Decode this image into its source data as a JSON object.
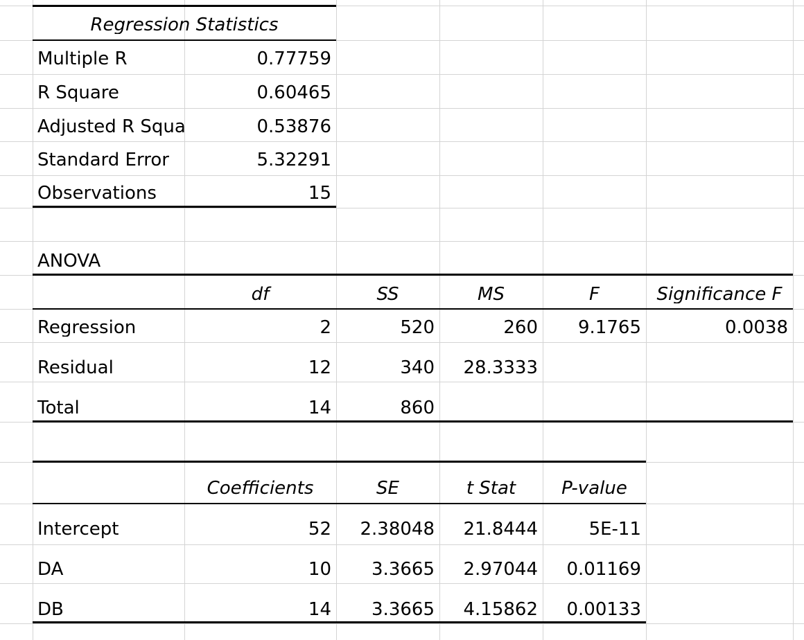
{
  "regression_statistics": {
    "title": "Regression Statistics",
    "rows": [
      {
        "label": "Multiple R",
        "value": "0.77759"
      },
      {
        "label": "R Square",
        "value": "0.60465"
      },
      {
        "label": "Adjusted R Squa",
        "value": "0.53876"
      },
      {
        "label": "Standard Error",
        "value": "5.32291"
      },
      {
        "label": "Observations",
        "value": "15"
      }
    ]
  },
  "anova": {
    "title": "ANOVA",
    "headers": [
      "",
      "df",
      "SS",
      "MS",
      "F",
      "Significance F"
    ],
    "rows": [
      [
        "Regression",
        "2",
        "520",
        "260",
        "9.1765",
        "0.0038"
      ],
      [
        "Residual",
        "12",
        "340",
        "28.3333",
        "",
        ""
      ],
      [
        "Total",
        "14",
        "860",
        "",
        "",
        ""
      ]
    ]
  },
  "coefficients": {
    "headers": [
      "",
      "Coefficients",
      "SE",
      "t Stat",
      "P-value"
    ],
    "rows": [
      [
        "Intercept",
        "52",
        "2.38048",
        "21.8444",
        "5E-11"
      ],
      [
        "DA",
        "10",
        "3.3665",
        "2.97044",
        "0.01169"
      ],
      [
        "DB",
        "14",
        "3.3665",
        "4.15862",
        "0.00133"
      ]
    ]
  }
}
